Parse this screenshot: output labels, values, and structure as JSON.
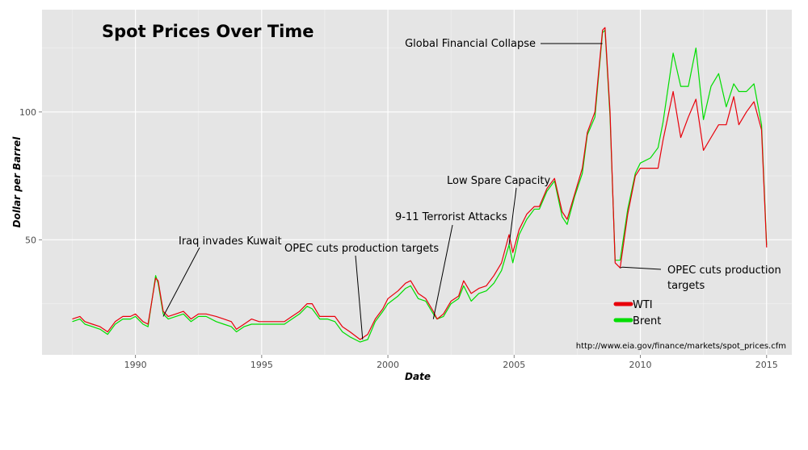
{
  "chart_data": {
    "type": "line",
    "title": "Spot Prices Over Time",
    "xlabel": "Date",
    "ylabel": "Dollar per Barrel",
    "xlim": [
      1986.3,
      2016.0
    ],
    "ylim": [
      5,
      140
    ],
    "x_ticks": [
      1990,
      1995,
      2000,
      2005,
      2010,
      2015
    ],
    "x_tick_labels": [
      "1990",
      "1995",
      "2000",
      "2005",
      "2010",
      "2015"
    ],
    "y_ticks": [
      50,
      100
    ],
    "y_tick_labels": [
      "50",
      "100"
    ],
    "grid": true,
    "legend_position": "bottom-right",
    "source": "http://www.eia.gov/finance/markets/spot_prices.cfm",
    "series": [
      {
        "name": "WTI",
        "color": "#e8000b",
        "points": [
          [
            1987.5,
            19
          ],
          [
            1987.8,
            20
          ],
          [
            1988.0,
            18
          ],
          [
            1988.3,
            17
          ],
          [
            1988.6,
            16
          ],
          [
            1988.9,
            14
          ],
          [
            1989.2,
            18
          ],
          [
            1989.5,
            20
          ],
          [
            1989.8,
            20
          ],
          [
            1990.0,
            21
          ],
          [
            1990.3,
            18
          ],
          [
            1990.5,
            17
          ],
          [
            1990.8,
            35
          ],
          [
            1990.9,
            34
          ],
          [
            1991.1,
            22
          ],
          [
            1991.3,
            20
          ],
          [
            1991.6,
            21
          ],
          [
            1991.9,
            22
          ],
          [
            1992.2,
            19
          ],
          [
            1992.5,
            21
          ],
          [
            1992.8,
            21
          ],
          [
            1993.2,
            20
          ],
          [
            1993.5,
            19
          ],
          [
            1993.8,
            18
          ],
          [
            1994.0,
            15
          ],
          [
            1994.3,
            17
          ],
          [
            1994.6,
            19
          ],
          [
            1994.9,
            18
          ],
          [
            1995.2,
            18
          ],
          [
            1995.6,
            18
          ],
          [
            1995.9,
            18
          ],
          [
            1996.2,
            20
          ],
          [
            1996.5,
            22
          ],
          [
            1996.8,
            25
          ],
          [
            1997.0,
            25
          ],
          [
            1997.3,
            20
          ],
          [
            1997.6,
            20
          ],
          [
            1997.9,
            20
          ],
          [
            1998.2,
            16
          ],
          [
            1998.5,
            14
          ],
          [
            1998.9,
            11
          ],
          [
            1999.2,
            13
          ],
          [
            1999.5,
            19
          ],
          [
            1999.8,
            23
          ],
          [
            2000.0,
            27
          ],
          [
            2000.4,
            30
          ],
          [
            2000.7,
            33
          ],
          [
            2000.9,
            34
          ],
          [
            2001.2,
            29
          ],
          [
            2001.5,
            27
          ],
          [
            2001.8,
            22
          ],
          [
            2001.95,
            19
          ],
          [
            2002.2,
            21
          ],
          [
            2002.5,
            26
          ],
          [
            2002.8,
            28
          ],
          [
            2003.0,
            34
          ],
          [
            2003.3,
            29
          ],
          [
            2003.6,
            31
          ],
          [
            2003.9,
            32
          ],
          [
            2004.2,
            36
          ],
          [
            2004.5,
            41
          ],
          [
            2004.8,
            52
          ],
          [
            2004.95,
            45
          ],
          [
            2005.2,
            54
          ],
          [
            2005.5,
            60
          ],
          [
            2005.8,
            63
          ],
          [
            2006.0,
            63
          ],
          [
            2006.3,
            70
          ],
          [
            2006.6,
            74
          ],
          [
            2006.9,
            61
          ],
          [
            2007.1,
            58
          ],
          [
            2007.4,
            68
          ],
          [
            2007.7,
            78
          ],
          [
            2007.9,
            92
          ],
          [
            2008.2,
            100
          ],
          [
            2008.5,
            132
          ],
          [
            2008.6,
            133
          ],
          [
            2008.8,
            100
          ],
          [
            2009.0,
            41
          ],
          [
            2009.2,
            39
          ],
          [
            2009.5,
            60
          ],
          [
            2009.8,
            75
          ],
          [
            2010.0,
            78
          ],
          [
            2010.4,
            78
          ],
          [
            2010.7,
            78
          ],
          [
            2010.9,
            89
          ],
          [
            2011.3,
            108
          ],
          [
            2011.6,
            90
          ],
          [
            2011.9,
            98
          ],
          [
            2012.2,
            105
          ],
          [
            2012.5,
            85
          ],
          [
            2012.8,
            90
          ],
          [
            2013.1,
            95
          ],
          [
            2013.4,
            95
          ],
          [
            2013.7,
            106
          ],
          [
            2013.9,
            95
          ],
          [
            2014.2,
            100
          ],
          [
            2014.5,
            104
          ],
          [
            2014.8,
            93
          ],
          [
            2015.0,
            47
          ]
        ]
      },
      {
        "name": "Brent",
        "color": "#00dd00",
        "points": [
          [
            1987.5,
            18
          ],
          [
            1987.8,
            19
          ],
          [
            1988.0,
            17
          ],
          [
            1988.3,
            16
          ],
          [
            1988.6,
            15
          ],
          [
            1988.9,
            13
          ],
          [
            1989.2,
            17
          ],
          [
            1989.5,
            19
          ],
          [
            1989.8,
            19
          ],
          [
            1990.0,
            20
          ],
          [
            1990.3,
            17
          ],
          [
            1990.5,
            16
          ],
          [
            1990.8,
            36
          ],
          [
            1990.9,
            33
          ],
          [
            1991.1,
            21
          ],
          [
            1991.3,
            19
          ],
          [
            1991.6,
            20
          ],
          [
            1991.9,
            21
          ],
          [
            1992.2,
            18
          ],
          [
            1992.5,
            20
          ],
          [
            1992.8,
            20
          ],
          [
            1993.2,
            18
          ],
          [
            1993.5,
            17
          ],
          [
            1993.8,
            16
          ],
          [
            1994.0,
            14
          ],
          [
            1994.3,
            16
          ],
          [
            1994.6,
            17
          ],
          [
            1994.9,
            17
          ],
          [
            1995.2,
            17
          ],
          [
            1995.6,
            17
          ],
          [
            1995.9,
            17
          ],
          [
            1996.2,
            19
          ],
          [
            1996.5,
            21
          ],
          [
            1996.8,
            24
          ],
          [
            1997.0,
            23
          ],
          [
            1997.3,
            19
          ],
          [
            1997.6,
            19
          ],
          [
            1997.9,
            18
          ],
          [
            1998.2,
            14
          ],
          [
            1998.5,
            12
          ],
          [
            1998.9,
            10
          ],
          [
            1999.2,
            11
          ],
          [
            1999.5,
            18
          ],
          [
            1999.8,
            22
          ],
          [
            2000.0,
            25
          ],
          [
            2000.4,
            28
          ],
          [
            2000.7,
            31
          ],
          [
            2000.9,
            32
          ],
          [
            2001.2,
            27
          ],
          [
            2001.5,
            26
          ],
          [
            2001.8,
            21
          ],
          [
            2001.95,
            19
          ],
          [
            2002.2,
            20
          ],
          [
            2002.5,
            25
          ],
          [
            2002.8,
            27
          ],
          [
            2003.0,
            32
          ],
          [
            2003.3,
            26
          ],
          [
            2003.6,
            29
          ],
          [
            2003.9,
            30
          ],
          [
            2004.2,
            33
          ],
          [
            2004.5,
            38
          ],
          [
            2004.8,
            48
          ],
          [
            2004.95,
            41
          ],
          [
            2005.2,
            52
          ],
          [
            2005.5,
            58
          ],
          [
            2005.8,
            62
          ],
          [
            2006.0,
            62
          ],
          [
            2006.3,
            69
          ],
          [
            2006.6,
            73
          ],
          [
            2006.9,
            59
          ],
          [
            2007.1,
            56
          ],
          [
            2007.4,
            67
          ],
          [
            2007.7,
            76
          ],
          [
            2007.9,
            91
          ],
          [
            2008.2,
            98
          ],
          [
            2008.5,
            131
          ],
          [
            2008.6,
            132
          ],
          [
            2008.8,
            98
          ],
          [
            2009.0,
            42
          ],
          [
            2009.2,
            42
          ],
          [
            2009.5,
            62
          ],
          [
            2009.8,
            76
          ],
          [
            2010.0,
            80
          ],
          [
            2010.4,
            82
          ],
          [
            2010.7,
            86
          ],
          [
            2010.9,
            96
          ],
          [
            2011.3,
            123
          ],
          [
            2011.6,
            110
          ],
          [
            2011.9,
            110
          ],
          [
            2012.2,
            125
          ],
          [
            2012.5,
            97
          ],
          [
            2012.8,
            110
          ],
          [
            2013.1,
            115
          ],
          [
            2013.4,
            102
          ],
          [
            2013.7,
            111
          ],
          [
            2013.9,
            108
          ],
          [
            2014.2,
            108
          ],
          [
            2014.5,
            111
          ],
          [
            2014.8,
            95
          ],
          [
            2015.0,
            48
          ]
        ]
      }
    ],
    "annotations": [
      {
        "label": "Iraq invades Kuwait",
        "x": 1991.1,
        "y": 20
      },
      {
        "label": "OPEC cuts production targets",
        "x": 1999.0,
        "y": 11
      },
      {
        "label": "9-11 Terrorist Attacks",
        "x": 2001.8,
        "y": 19
      },
      {
        "label": "Low Spare Capacity",
        "x": 2004.8,
        "y": 48
      },
      {
        "label": "Global Financial Collapse",
        "x": 2008.5,
        "y": 132
      },
      {
        "label": "OPEC cuts production",
        "label2": "targets",
        "x": 2009.2,
        "y": 39
      }
    ]
  }
}
